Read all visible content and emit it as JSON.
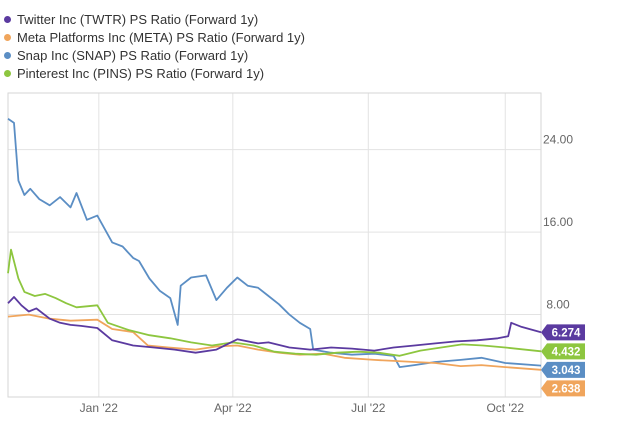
{
  "chart_data": {
    "type": "line",
    "title": "",
    "xlabel": "",
    "ylabel": "",
    "x_range": [
      "2021-11-01",
      "2022-10-25"
    ],
    "x_ticks": [
      {
        "date": "2022-01-01",
        "label": "Jan '22"
      },
      {
        "date": "2022-04-01",
        "label": "Apr '22"
      },
      {
        "date": "2022-07-01",
        "label": "Jul '22"
      },
      {
        "date": "2022-10-01",
        "label": "Oct '22"
      }
    ],
    "y_ticks": [
      {
        "value": 8,
        "label": "8.00"
      },
      {
        "value": 16,
        "label": "16.00"
      },
      {
        "value": 24,
        "label": "24.00"
      }
    ],
    "ylim": [
      0,
      29.5
    ],
    "grid": true,
    "legend_position": "top-left",
    "series": [
      {
        "name": "Twitter Inc (TWTR) PS Ratio (Forward 1y)",
        "color": "#5b3aa0",
        "last_label": "6.274",
        "points": [
          [
            "2021-11-01",
            9.1
          ],
          [
            "2021-11-05",
            9.7
          ],
          [
            "2021-11-10",
            8.9
          ],
          [
            "2021-11-15",
            8.3
          ],
          [
            "2021-11-20",
            8.6
          ],
          [
            "2021-11-29",
            7.6
          ],
          [
            "2021-12-06",
            7.2
          ],
          [
            "2021-12-13",
            7.0
          ],
          [
            "2021-12-20",
            6.9
          ],
          [
            "2021-12-31",
            6.7
          ],
          [
            "2022-01-10",
            5.5
          ],
          [
            "2022-01-24",
            5.0
          ],
          [
            "2022-02-07",
            4.8
          ],
          [
            "2022-02-21",
            4.6
          ],
          [
            "2022-03-07",
            4.3
          ],
          [
            "2022-03-21",
            4.6
          ],
          [
            "2022-04-04",
            5.6
          ],
          [
            "2022-04-18",
            5.2
          ],
          [
            "2022-04-25",
            5.3
          ],
          [
            "2022-05-09",
            4.8
          ],
          [
            "2022-05-23",
            4.6
          ],
          [
            "2022-06-06",
            4.8
          ],
          [
            "2022-06-20",
            4.7
          ],
          [
            "2022-07-05",
            4.5
          ],
          [
            "2022-07-18",
            4.8
          ],
          [
            "2022-08-01",
            5.0
          ],
          [
            "2022-08-15",
            5.2
          ],
          [
            "2022-08-29",
            5.4
          ],
          [
            "2022-09-12",
            5.5
          ],
          [
            "2022-09-26",
            5.7
          ],
          [
            "2022-10-03",
            5.9
          ],
          [
            "2022-10-05",
            7.2
          ],
          [
            "2022-10-12",
            6.8
          ],
          [
            "2022-10-25",
            6.274
          ]
        ]
      },
      {
        "name": "Meta Platforms Inc (META) PS Ratio (Forward 1y)",
        "color": "#f0a55c",
        "last_label": "2.638",
        "points": [
          [
            "2021-11-01",
            7.8
          ],
          [
            "2021-11-15",
            8.0
          ],
          [
            "2021-11-29",
            7.6
          ],
          [
            "2021-12-13",
            7.4
          ],
          [
            "2021-12-31",
            7.5
          ],
          [
            "2022-01-10",
            6.6
          ],
          [
            "2022-01-24",
            6.3
          ],
          [
            "2022-02-03",
            5.0
          ],
          [
            "2022-02-17",
            4.8
          ],
          [
            "2022-03-07",
            4.6
          ],
          [
            "2022-03-21",
            4.9
          ],
          [
            "2022-04-04",
            5.0
          ],
          [
            "2022-04-18",
            4.6
          ],
          [
            "2022-05-02",
            4.3
          ],
          [
            "2022-05-16",
            4.1
          ],
          [
            "2022-06-01",
            4.2
          ],
          [
            "2022-06-15",
            3.8
          ],
          [
            "2022-07-05",
            3.6
          ],
          [
            "2022-07-18",
            3.5
          ],
          [
            "2022-08-01",
            3.4
          ],
          [
            "2022-08-15",
            3.3
          ],
          [
            "2022-09-01",
            3.0
          ],
          [
            "2022-09-15",
            3.1
          ],
          [
            "2022-10-01",
            2.9
          ],
          [
            "2022-10-25",
            2.638
          ]
        ]
      },
      {
        "name": "Snap Inc (SNAP) PS Ratio (Forward 1y)",
        "color": "#5b8ec4",
        "last_label": "3.043",
        "points": [
          [
            "2021-11-01",
            27.0
          ],
          [
            "2021-11-05",
            26.6
          ],
          [
            "2021-11-08",
            21.0
          ],
          [
            "2021-11-12",
            19.6
          ],
          [
            "2021-11-16",
            20.2
          ],
          [
            "2021-11-22",
            19.2
          ],
          [
            "2021-11-29",
            18.6
          ],
          [
            "2021-12-06",
            19.4
          ],
          [
            "2021-12-13",
            18.4
          ],
          [
            "2021-12-17",
            19.8
          ],
          [
            "2021-12-24",
            17.2
          ],
          [
            "2021-12-31",
            17.6
          ],
          [
            "2022-01-10",
            15.0
          ],
          [
            "2022-01-17",
            14.6
          ],
          [
            "2022-01-24",
            13.5
          ],
          [
            "2022-01-28",
            13.2
          ],
          [
            "2022-02-04",
            11.5
          ],
          [
            "2022-02-11",
            10.3
          ],
          [
            "2022-02-18",
            9.6
          ],
          [
            "2022-02-23",
            7.0
          ],
          [
            "2022-02-25",
            10.8
          ],
          [
            "2022-03-04",
            11.6
          ],
          [
            "2022-03-14",
            11.8
          ],
          [
            "2022-03-21",
            9.4
          ],
          [
            "2022-03-28",
            10.6
          ],
          [
            "2022-04-04",
            11.6
          ],
          [
            "2022-04-11",
            10.8
          ],
          [
            "2022-04-18",
            10.6
          ],
          [
            "2022-04-25",
            9.8
          ],
          [
            "2022-05-02",
            9.0
          ],
          [
            "2022-05-09",
            8.0
          ],
          [
            "2022-05-16",
            7.2
          ],
          [
            "2022-05-23",
            6.6
          ],
          [
            "2022-05-25",
            4.6
          ],
          [
            "2022-06-06",
            4.3
          ],
          [
            "2022-06-20",
            4.1
          ],
          [
            "2022-07-05",
            4.2
          ],
          [
            "2022-07-18",
            4.0
          ],
          [
            "2022-07-22",
            2.9
          ],
          [
            "2022-08-01",
            3.1
          ],
          [
            "2022-08-15",
            3.4
          ],
          [
            "2022-09-01",
            3.6
          ],
          [
            "2022-09-15",
            3.8
          ],
          [
            "2022-10-01",
            3.3
          ],
          [
            "2022-10-25",
            3.043
          ]
        ]
      },
      {
        "name": "Pinterest Inc (PINS) PS Ratio (Forward 1y)",
        "color": "#8dc63f",
        "last_label": "4.432",
        "points": [
          [
            "2021-11-01",
            12.0
          ],
          [
            "2021-11-03",
            14.3
          ],
          [
            "2021-11-08",
            11.5
          ],
          [
            "2021-11-12",
            10.2
          ],
          [
            "2021-11-19",
            9.8
          ],
          [
            "2021-11-26",
            10.0
          ],
          [
            "2021-12-03",
            9.6
          ],
          [
            "2021-12-10",
            9.1
          ],
          [
            "2021-12-17",
            8.7
          ],
          [
            "2021-12-31",
            8.9
          ],
          [
            "2022-01-07",
            7.2
          ],
          [
            "2022-01-21",
            6.5
          ],
          [
            "2022-02-04",
            6.0
          ],
          [
            "2022-02-18",
            5.7
          ],
          [
            "2022-03-04",
            5.3
          ],
          [
            "2022-03-18",
            5.0
          ],
          [
            "2022-04-01",
            5.3
          ],
          [
            "2022-04-15",
            5.0
          ],
          [
            "2022-04-29",
            4.4
          ],
          [
            "2022-05-13",
            4.2
          ],
          [
            "2022-05-27",
            4.1
          ],
          [
            "2022-06-10",
            4.3
          ],
          [
            "2022-06-24",
            4.4
          ],
          [
            "2022-07-08",
            4.3
          ],
          [
            "2022-07-22",
            4.0
          ],
          [
            "2022-08-05",
            4.5
          ],
          [
            "2022-08-19",
            4.8
          ],
          [
            "2022-09-02",
            5.1
          ],
          [
            "2022-09-16",
            5.0
          ],
          [
            "2022-10-01",
            4.8
          ],
          [
            "2022-10-25",
            4.432
          ]
        ]
      }
    ]
  }
}
